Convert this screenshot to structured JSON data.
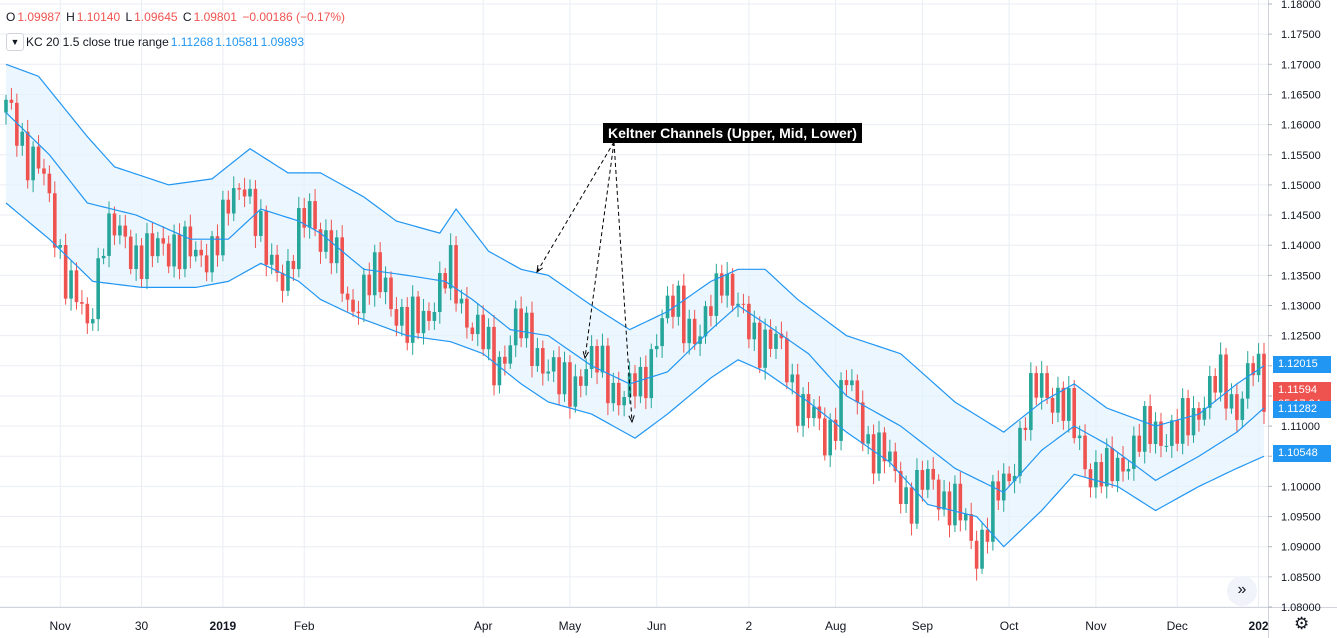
{
  "legend": {
    "ohlc": [
      {
        "key": "O",
        "value": "1.09987"
      },
      {
        "key": "H",
        "value": "1.10140"
      },
      {
        "key": "L",
        "value": "1.09645"
      },
      {
        "key": "C",
        "value": "1.09801"
      }
    ],
    "change": "−0.00186 (−0.17%)",
    "indicator": {
      "toggle_icon": "chevron-down-icon",
      "name": "KC 20 1.5 close true range",
      "values": [
        "1.11268",
        "1.10581",
        "1.09893"
      ]
    }
  },
  "annotation": "Keltner Channels (Upper, Mid, Lower)",
  "price_tags": [
    {
      "text": "1.12015",
      "color": "#2196f3",
      "price": 1.12015
    },
    {
      "text": "1.11594",
      "color": "#ef5350",
      "price": 1.11594
    },
    {
      "text": "05:17:24",
      "color": "#ef5350",
      "price": 1.11352
    },
    {
      "text": "1.11282",
      "color": "#2196f3",
      "price": 1.11282
    },
    {
      "text": "1.10548",
      "color": "#2196f3",
      "price": 1.10548
    }
  ],
  "colors": {
    "up": "#26a69a",
    "down": "#ef5350",
    "band": "#2196f3",
    "band_fill": "#e3f2fd",
    "grid": "#e9edf3"
  },
  "icons": {
    "scroll": "scroll-right-icon",
    "settings": "gear-icon"
  },
  "scroll_glyph": "»",
  "settings_glyph": "⚙",
  "chart_data": {
    "type": "candlestick",
    "y_axis": {
      "min": 1.08,
      "max": 1.18,
      "step": 0.005,
      "labels": [
        "1.18000",
        "1.17500",
        "1.17000",
        "1.16500",
        "1.16000",
        "1.15500",
        "1.15000",
        "1.14500",
        "1.14000",
        "1.13500",
        "1.13000",
        "1.12500",
        "1.12000",
        "1.11500",
        "1.11000",
        "1.10500",
        "1.10000",
        "1.09500",
        "1.09000",
        "1.08500",
        "1.08000"
      ]
    },
    "x_axis": {
      "labels": [
        "Nov",
        "30",
        "2019",
        "Feb",
        "Apr",
        "May",
        "Jun",
        "2",
        "Aug",
        "Sep",
        "Oct",
        "Nov",
        "Dec",
        "202"
      ]
    },
    "x_label_bar_index": [
      10,
      25,
      40,
      55,
      88,
      104,
      120,
      137,
      153,
      169,
      185,
      201,
      216,
      231
    ],
    "bar_count": 233,
    "keltner_upper": [
      [
        0,
        1.17
      ],
      [
        6,
        1.168
      ],
      [
        15,
        1.158
      ],
      [
        20,
        1.153
      ],
      [
        30,
        1.15
      ],
      [
        38,
        1.151
      ],
      [
        45,
        1.156
      ],
      [
        52,
        1.152
      ],
      [
        58,
        1.152
      ],
      [
        66,
        1.148
      ],
      [
        72,
        1.144
      ],
      [
        80,
        1.142
      ],
      [
        83,
        1.146
      ],
      [
        89,
        1.139
      ],
      [
        95,
        1.136
      ],
      [
        100,
        1.135
      ],
      [
        108,
        1.13
      ],
      [
        115,
        1.126
      ],
      [
        122,
        1.129
      ],
      [
        130,
        1.134
      ],
      [
        135,
        1.136
      ],
      [
        140,
        1.136
      ],
      [
        146,
        1.131
      ],
      [
        155,
        1.125
      ],
      [
        165,
        1.122
      ],
      [
        175,
        1.114
      ],
      [
        184,
        1.109
      ],
      [
        191,
        1.114
      ],
      [
        197,
        1.117
      ],
      [
        203,
        1.113
      ],
      [
        212,
        1.11
      ],
      [
        220,
        1.112
      ],
      [
        227,
        1.117
      ],
      [
        232,
        1.12
      ]
    ],
    "keltner_mid": [
      [
        0,
        1.162
      ],
      [
        8,
        1.155
      ],
      [
        15,
        1.147
      ],
      [
        24,
        1.145
      ],
      [
        34,
        1.141
      ],
      [
        41,
        1.141
      ],
      [
        47,
        1.146
      ],
      [
        54,
        1.144
      ],
      [
        58,
        1.142
      ],
      [
        66,
        1.136
      ],
      [
        74,
        1.135
      ],
      [
        81,
        1.134
      ],
      [
        86,
        1.131
      ],
      [
        93,
        1.126
      ],
      [
        100,
        1.125
      ],
      [
        108,
        1.12
      ],
      [
        115,
        1.117
      ],
      [
        122,
        1.119
      ],
      [
        130,
        1.126
      ],
      [
        135,
        1.13
      ],
      [
        140,
        1.127
      ],
      [
        148,
        1.122
      ],
      [
        155,
        1.115
      ],
      [
        165,
        1.11
      ],
      [
        175,
        1.103
      ],
      [
        184,
        1.099
      ],
      [
        191,
        1.106
      ],
      [
        197,
        1.11
      ],
      [
        203,
        1.107
      ],
      [
        212,
        1.101
      ],
      [
        220,
        1.105
      ],
      [
        227,
        1.109
      ],
      [
        232,
        1.113
      ]
    ],
    "keltner_lower": [
      [
        0,
        1.147
      ],
      [
        8,
        1.141
      ],
      [
        16,
        1.134
      ],
      [
        25,
        1.133
      ],
      [
        35,
        1.133
      ],
      [
        41,
        1.134
      ],
      [
        47,
        1.137
      ],
      [
        54,
        1.134
      ],
      [
        58,
        1.131
      ],
      [
        65,
        1.128
      ],
      [
        74,
        1.125
      ],
      [
        82,
        1.124
      ],
      [
        88,
        1.122
      ],
      [
        95,
        1.117
      ],
      [
        100,
        1.114
      ],
      [
        108,
        1.112
      ],
      [
        116,
        1.108
      ],
      [
        122,
        1.112
      ],
      [
        130,
        1.118
      ],
      [
        135,
        1.121
      ],
      [
        140,
        1.119
      ],
      [
        148,
        1.114
      ],
      [
        155,
        1.109
      ],
      [
        163,
        1.104
      ],
      [
        170,
        1.097
      ],
      [
        179,
        1.095
      ],
      [
        184,
        1.09
      ],
      [
        191,
        1.096
      ],
      [
        197,
        1.102
      ],
      [
        205,
        1.1
      ],
      [
        212,
        1.096
      ],
      [
        220,
        1.1
      ],
      [
        227,
        1.103
      ],
      [
        232,
        1.105
      ]
    ],
    "close_path": [
      [
        0,
        1.162
      ],
      [
        6,
        1.153
      ],
      [
        10,
        1.139
      ],
      [
        15,
        1.125
      ],
      [
        18,
        1.143
      ],
      [
        22,
        1.14
      ],
      [
        27,
        1.138
      ],
      [
        31,
        1.141
      ],
      [
        35,
        1.137
      ],
      [
        40,
        1.143
      ],
      [
        44,
        1.152
      ],
      [
        48,
        1.137
      ],
      [
        52,
        1.136
      ],
      [
        56,
        1.146
      ],
      [
        60,
        1.139
      ],
      [
        63,
        1.13
      ],
      [
        66,
        1.133
      ],
      [
        70,
        1.134
      ],
      [
        74,
        1.125
      ],
      [
        78,
        1.13
      ],
      [
        82,
        1.135
      ],
      [
        86,
        1.127
      ],
      [
        90,
        1.12
      ],
      [
        94,
        1.126
      ],
      [
        98,
        1.123
      ],
      [
        102,
        1.116
      ],
      [
        106,
        1.119
      ],
      [
        110,
        1.12
      ],
      [
        114,
        1.114
      ],
      [
        117,
        1.117
      ],
      [
        120,
        1.125
      ],
      [
        124,
        1.131
      ],
      [
        128,
        1.123
      ],
      [
        132,
        1.137
      ],
      [
        135,
        1.128
      ],
      [
        139,
        1.125
      ],
      [
        143,
        1.122
      ],
      [
        147,
        1.113
      ],
      [
        151,
        1.108
      ],
      [
        155,
        1.117
      ],
      [
        159,
        1.108
      ],
      [
        163,
        1.103
      ],
      [
        167,
        1.098
      ],
      [
        171,
        1.101
      ],
      [
        175,
        1.096
      ],
      [
        179,
        1.09
      ],
      [
        182,
        1.096
      ],
      [
        185,
        1.102
      ],
      [
        188,
        1.112
      ],
      [
        191,
        1.117
      ],
      [
        194,
        1.115
      ],
      [
        197,
        1.109
      ],
      [
        200,
        1.103
      ],
      [
        203,
        1.101
      ],
      [
        206,
        1.105
      ],
      [
        209,
        1.107
      ],
      [
        212,
        1.11
      ],
      [
        216,
        1.108
      ],
      [
        220,
        1.114
      ],
      [
        224,
        1.117
      ],
      [
        227,
        1.114
      ],
      [
        230,
        1.119
      ],
      [
        232,
        1.116
      ]
    ]
  }
}
